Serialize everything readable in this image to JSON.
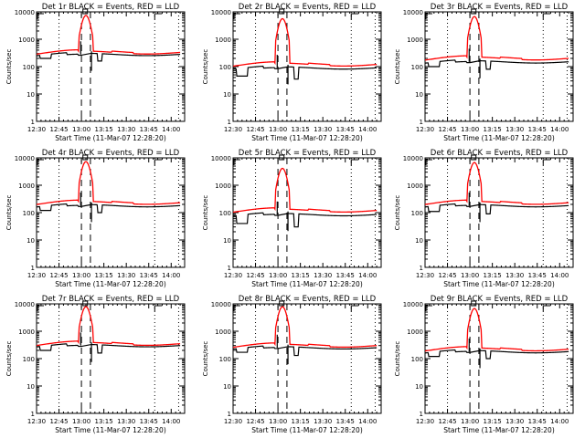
{
  "chart_data": {
    "type": "line",
    "layout": "3x3 grid",
    "shared": {
      "ylabel": "Counts/sec",
      "xlabel": "Start Time (11-Mar-07 12:28:20)",
      "yscale": "log",
      "ylim": [
        1,
        10000
      ],
      "yticks": [
        "1",
        "10",
        "100",
        "1000",
        "10000"
      ],
      "xticks": [
        "12:30",
        "12:45",
        "13:00",
        "13:15",
        "13:30",
        "13:45",
        "14:00"
      ],
      "xlim_minutes_after_1230": [
        0,
        99
      ],
      "dotted_vlines_minutes": [
        15,
        79,
        95
      ],
      "dashed_vlines_minutes": [
        30,
        36
      ],
      "series_names": [
        "Events (black)",
        "LLD (red)"
      ],
      "colors": {
        "events": "#000000",
        "lld": "#ff0000"
      }
    },
    "panels": [
      {
        "title": "Det 1r BLACK = Events, RED = LLD",
        "base_red": 330,
        "base_black": 280,
        "peak": 7000,
        "dip": 160,
        "early_black": 200
      },
      {
        "title": "Det 2r BLACK = Events, RED = LLD",
        "base_red": 120,
        "base_black": 90,
        "peak": 5500,
        "dip": 35,
        "early_black": 45
      },
      {
        "title": "Det 3r BLACK = Events, RED = LLD",
        "base_red": 200,
        "base_black": 150,
        "peak": 6500,
        "dip": 80,
        "early_black": 100
      },
      {
        "title": "Det 4r BLACK = Events, RED = LLD",
        "base_red": 230,
        "base_black": 180,
        "peak": 7000,
        "dip": 100,
        "early_black": 120
      },
      {
        "title": "Det 5r BLACK = Events, RED = LLD",
        "base_red": 120,
        "base_black": 85,
        "peak": 4000,
        "dip": 30,
        "early_black": 40
      },
      {
        "title": "Det 6r BLACK = Events, RED = LLD",
        "base_red": 230,
        "base_black": 180,
        "peak": 6500,
        "dip": 90,
        "early_black": 110
      },
      {
        "title": "Det 7r BLACK = Events, RED = LLD",
        "base_red": 350,
        "base_black": 300,
        "peak": 7500,
        "dip": 160,
        "early_black": 200
      },
      {
        "title": "Det 8r BLACK = Events, RED = LLD",
        "base_red": 300,
        "base_black": 250,
        "peak": 7500,
        "dip": 130,
        "early_black": 170
      },
      {
        "title": "Det 9r BLACK = Events, RED = LLD",
        "base_red": 220,
        "base_black": 180,
        "peak": 6500,
        "dip": 100,
        "early_black": 120
      }
    ]
  }
}
